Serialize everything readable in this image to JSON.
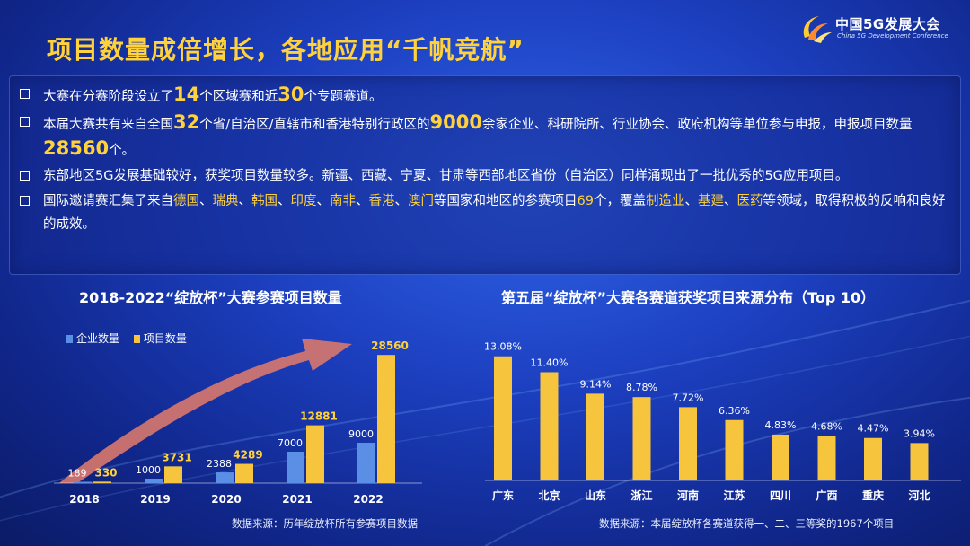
{
  "header": {
    "logo_title": "中国5G发展大会",
    "logo_subtitle": "China 5G Development Conference",
    "title": "项目数量成倍增长，各地应用“千帆竞航”"
  },
  "bullets": [
    {
      "segments": [
        {
          "text": "大赛在分赛阶段设立了",
          "style": "normal"
        },
        {
          "text": "14",
          "style": "big"
        },
        {
          "text": "个区域赛和近",
          "style": "normal"
        },
        {
          "text": "30",
          "style": "big"
        },
        {
          "text": "个专题赛道。",
          "style": "normal"
        }
      ]
    },
    {
      "segments": [
        {
          "text": "本届大赛共有来自全国",
          "style": "normal"
        },
        {
          "text": "32",
          "style": "big"
        },
        {
          "text": "个省/自治区/直辖市和香港特别行政区的",
          "style": "normal"
        },
        {
          "text": "9000",
          "style": "big"
        },
        {
          "text": "余家企业、科研院所、行业协会、政府机构等单位参与申报，申报项目数量",
          "style": "normal"
        },
        {
          "text": "28560",
          "style": "big"
        },
        {
          "text": "个。",
          "style": "normal"
        }
      ]
    },
    {
      "segments": [
        {
          "text": "东部地区5G发展基础较好，获奖项目数量较多。新疆、西藏、宁夏、甘肃等西部地区省份（自治区）同样涌现出了一批优秀的5G应用项目。",
          "style": "normal"
        }
      ]
    },
    {
      "segments": [
        {
          "text": "国际邀请赛汇集了来自",
          "style": "normal"
        },
        {
          "text": "德国",
          "style": "yellow"
        },
        {
          "text": "、",
          "style": "normal"
        },
        {
          "text": "瑞典",
          "style": "yellow"
        },
        {
          "text": "、",
          "style": "normal"
        },
        {
          "text": "韩国",
          "style": "yellow"
        },
        {
          "text": "、",
          "style": "normal"
        },
        {
          "text": "印度",
          "style": "yellow"
        },
        {
          "text": "、",
          "style": "normal"
        },
        {
          "text": "南非",
          "style": "yellow"
        },
        {
          "text": "、",
          "style": "normal"
        },
        {
          "text": "香港",
          "style": "yellow"
        },
        {
          "text": "、",
          "style": "normal"
        },
        {
          "text": "澳门",
          "style": "yellow"
        },
        {
          "text": "等国家和地区的参赛项目",
          "style": "normal"
        },
        {
          "text": "69",
          "style": "yellow"
        },
        {
          "text": "个，覆盖",
          "style": "normal"
        },
        {
          "text": "制造业",
          "style": "yellow"
        },
        {
          "text": "、",
          "style": "normal"
        },
        {
          "text": "基建",
          "style": "yellow"
        },
        {
          "text": "、",
          "style": "normal"
        },
        {
          "text": "医药",
          "style": "yellow"
        },
        {
          "text": "等领域，取得积极的反响和良好的成效。",
          "style": "normal"
        }
      ]
    }
  ],
  "colors": {
    "accent": "#ffd23c",
    "company_bar": "#5b8fe6",
    "project_bar": "#f7c53d",
    "arrow": "#d9786d",
    "background": "#1c3fbf"
  },
  "chart_data": [
    {
      "type": "bar",
      "title": "2018-2022“绽放杯”大赛参赛项目数量",
      "categories": [
        "2018",
        "2019",
        "2020",
        "2021",
        "2022"
      ],
      "series": [
        {
          "name": "企业数量",
          "values": [
            189,
            1000,
            2388,
            7000,
            9000
          ]
        },
        {
          "name": "项目数量",
          "values": [
            330,
            3731,
            4289,
            12881,
            28560
          ]
        }
      ],
      "ylim": [
        0,
        30000
      ],
      "legend": "top-left",
      "grid": false,
      "annotation": "增长趋势箭头",
      "source": "数据来源：历年绽放杯所有参赛项目数据"
    },
    {
      "type": "bar",
      "title": "第五届“绽放杯”大赛各赛道获奖项目来源分布（Top 10）",
      "categories": [
        "广东",
        "北京",
        "山东",
        "浙江",
        "河南",
        "江苏",
        "四川",
        "广西",
        "重庆",
        "河北"
      ],
      "values": [
        13.08,
        11.4,
        9.14,
        8.78,
        7.72,
        6.36,
        4.83,
        4.68,
        4.47,
        3.94
      ],
      "value_labels": [
        "13.08%",
        "11.40%",
        "9.14%",
        "8.78%",
        "7.72%",
        "6.36%",
        "4.83%",
        "4.68%",
        "4.47%",
        "3.94%"
      ],
      "ylim": [
        0,
        14
      ],
      "grid": false,
      "source": "数据来源：本届绽放杯各赛道获得一、二、三等奖的1967个项目"
    }
  ]
}
